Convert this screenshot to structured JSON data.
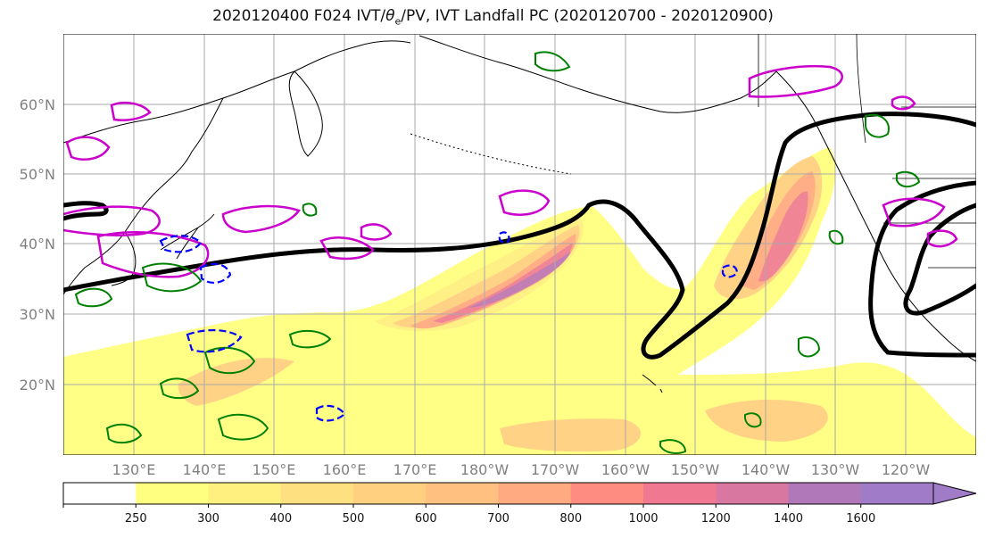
{
  "title": {
    "prefix": "2020120400 F024 IVT/",
    "theta": "θ",
    "theta_sub": "e",
    "suffix": "/PV, IVT Landfall PC (2020120700 - 2020120900)"
  },
  "lat_labels": [
    "60°N",
    "50°N",
    "40°N",
    "30°N",
    "20°N"
  ],
  "lon_labels": [
    "130°E",
    "140°E",
    "150°E",
    "160°E",
    "170°E",
    "180°W",
    "170°W",
    "160°W",
    "150°W",
    "140°W",
    "130°W",
    "120°W"
  ],
  "colorbar": {
    "levels": [
      "250",
      "300",
      "400",
      "500",
      "600",
      "700",
      "800",
      "1000",
      "1200",
      "1400",
      "1600"
    ],
    "colors": [
      "#ffffff",
      "#ffff80",
      "#fff080",
      "#ffe080",
      "#ffd080",
      "#ffc080",
      "#ffaa80",
      "#ff8c80",
      "#f07890",
      "#d878a0",
      "#b078b8",
      "#a07cc8"
    ]
  },
  "map": {
    "extent": {
      "lon_min": 120,
      "lon_max": 250,
      "lat_min": 10,
      "lat_max": 70
    },
    "contours": {
      "pc": "#000000",
      "pv_positive": "#008000",
      "pv_negative": "#0000ff",
      "theta_e": "#cc00cc"
    }
  }
}
